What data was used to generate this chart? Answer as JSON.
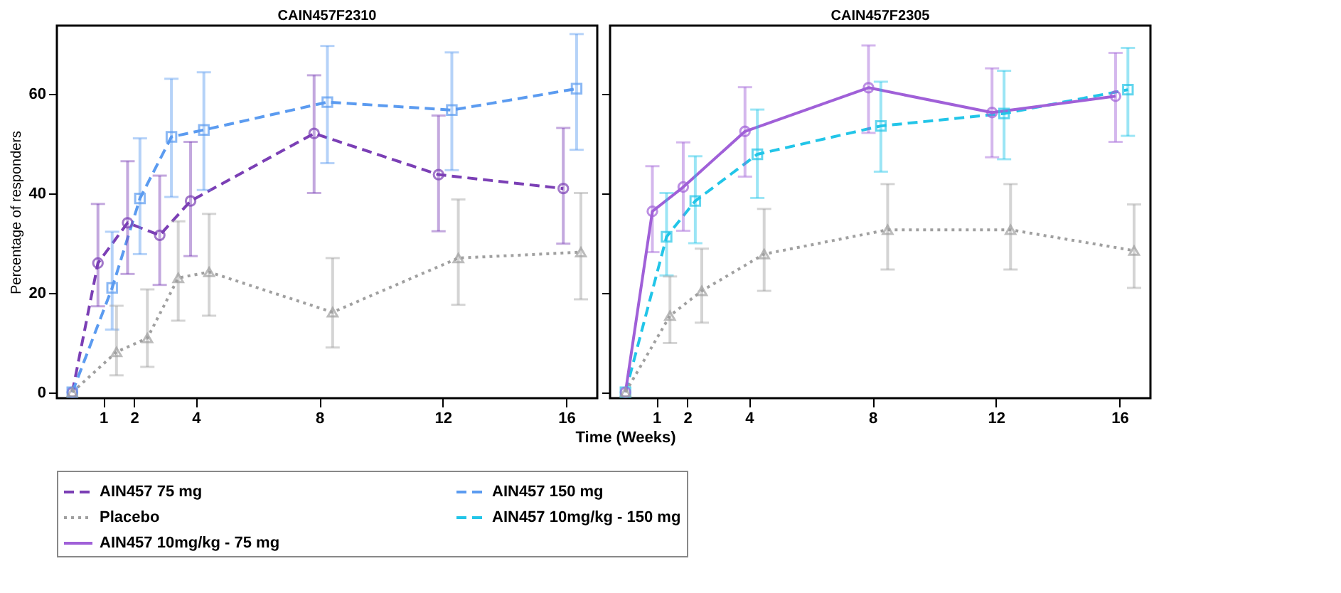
{
  "chart_data": [
    {
      "type": "line",
      "title": "CAIN457F2310",
      "xlabel": "Time (Weeks)",
      "ylabel": "Percentage of responders",
      "xlim": [
        -0.5,
        17
      ],
      "ylim": [
        -1.2,
        73.8
      ],
      "xticks": [
        1,
        2,
        4,
        8,
        12,
        16
      ],
      "yticks": [
        0,
        20,
        40,
        60
      ],
      "grid": false,
      "legend": "bottom",
      "series": [
        {
          "name": "AIN457 75 mg",
          "color": "#7b3fb5",
          "marker": "circle",
          "line_style": "dashed",
          "x": [
            0,
            0.83,
            1.79,
            2.83,
            3.83,
            7.83,
            11.86,
            15.9
          ],
          "values": [
            0,
            26.0,
            34.1,
            31.6,
            38.5,
            52.1,
            43.8,
            41.0
          ],
          "errors": [
            null,
            [
              17.3,
              37.9
            ],
            [
              23.8,
              46.5
            ],
            [
              21.6,
              43.6
            ],
            [
              27.4,
              50.4
            ],
            [
              40.1,
              63.8
            ],
            [
              32.4,
              55.7
            ],
            [
              29.9,
              53.2
            ]
          ]
        },
        {
          "name": "AIN457 150 mg",
          "color": "#5b9bf0",
          "marker": "square",
          "line_style": "dashed",
          "x": [
            0,
            1.29,
            2.19,
            3.21,
            4.26,
            8.26,
            12.29,
            16.33
          ],
          "values": [
            0,
            21.0,
            39.0,
            51.4,
            52.8,
            58.4,
            56.8,
            61.1
          ],
          "errors": [
            null,
            [
              12.6,
              32.3
            ],
            [
              27.8,
              51.1
            ],
            [
              39.3,
              63.1
            ],
            [
              40.7,
              64.4
            ],
            [
              46.1,
              69.7
            ],
            [
              44.7,
              68.4
            ],
            [
              48.8,
              72.1
            ]
          ]
        },
        {
          "name": "Placebo",
          "color": "#a0a0a0",
          "marker": "triangle",
          "line_style": "dotted",
          "x": [
            0,
            1.43,
            2.43,
            3.43,
            4.43,
            8.43,
            12.5,
            16.47
          ],
          "values": [
            0,
            8.1,
            10.9,
            23.0,
            24.2,
            16.1,
            27.0,
            28.2
          ],
          "errors": [
            null,
            [
              3.4,
              17.4
            ],
            [
              5.1,
              20.7
            ],
            [
              14.4,
              34.4
            ],
            [
              15.4,
              35.9
            ],
            [
              9.0,
              27.0
            ],
            [
              17.6,
              38.8
            ],
            [
              18.7,
              40.1
            ]
          ]
        }
      ]
    },
    {
      "type": "line",
      "title": "CAIN457F2305",
      "xlim": [
        -0.5,
        17
      ],
      "ylim": [
        -1.2,
        73.8
      ],
      "xticks": [
        1,
        2,
        4,
        8,
        12,
        16
      ],
      "yticks": [
        0,
        20,
        40,
        60
      ],
      "tick_labels": "x",
      "grid": false,
      "legend": "bottom",
      "series": [
        {
          "name": "AIN457 10mg/kg - 150 mg",
          "color": "#22c5e8",
          "marker": "square",
          "line_style": "dashed",
          "x": [
            0,
            1.33,
            2.26,
            4.27,
            8.27,
            12.26,
            16.27
          ],
          "values": [
            0,
            31.3,
            38.5,
            47.9,
            53.6,
            56.1,
            60.9
          ],
          "errors": [
            null,
            [
              23.5,
              40.1
            ],
            [
              30.0,
              47.5
            ],
            [
              39.1,
              56.9
            ],
            [
              44.4,
              62.5
            ],
            [
              46.9,
              64.7
            ],
            [
              51.6,
              69.3
            ]
          ]
        },
        {
          "name": "AIN457 10mg/kg - 75 mg",
          "color": "#a060d8",
          "marker": "circle",
          "line_style": "solid",
          "x": [
            0,
            0.87,
            1.87,
            3.87,
            7.87,
            11.87,
            15.87
          ],
          "values": [
            0,
            36.4,
            41.3,
            52.5,
            61.3,
            56.3,
            59.6
          ],
          "errors": [
            null,
            [
              28.2,
              45.5
            ],
            [
              32.5,
              50.3
            ],
            [
              43.4,
              61.4
            ],
            [
              52.2,
              69.8
            ],
            [
              47.3,
              65.2
            ],
            [
              50.4,
              68.3
            ]
          ]
        },
        {
          "name": "Placebo",
          "color": "#a0a0a0",
          "marker": "triangle",
          "line_style": "dotted",
          "x": [
            0,
            1.44,
            2.47,
            4.49,
            8.49,
            12.47,
            16.47
          ],
          "values": [
            0,
            15.4,
            20.4,
            27.8,
            32.7,
            32.7,
            28.5
          ],
          "errors": [
            null,
            [
              9.9,
              23.3
            ],
            [
              14.0,
              28.9
            ],
            [
              20.4,
              36.9
            ],
            [
              24.7,
              41.9
            ],
            [
              24.7,
              41.9
            ],
            [
              21.0,
              37.8
            ]
          ]
        }
      ]
    }
  ]
}
